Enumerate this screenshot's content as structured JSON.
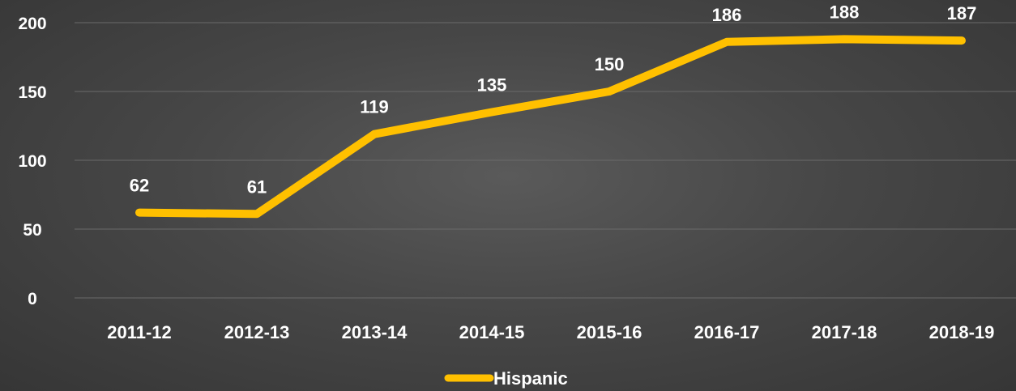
{
  "chart_data": {
    "type": "line",
    "title": "",
    "xlabel": "",
    "ylabel": "",
    "categories": [
      "2011-12",
      "2012-13",
      "2013-14",
      "2014-15",
      "2015-16",
      "2016-17",
      "2017-18",
      "2018-19"
    ],
    "series": [
      {
        "name": "Hispanic",
        "color": "#ffc000",
        "values": [
          62,
          61,
          119,
          135,
          150,
          186,
          188,
          187
        ]
      }
    ],
    "ylim": [
      0,
      200
    ],
    "yticks": [
      0,
      50,
      100,
      150,
      200
    ],
    "grid": true,
    "legend": "bottom"
  }
}
